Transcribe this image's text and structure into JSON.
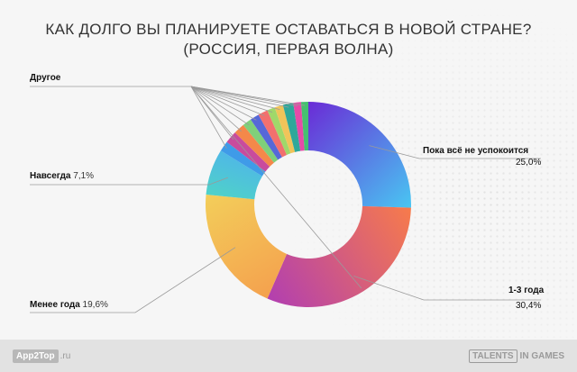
{
  "chart_data": {
    "type": "pie",
    "title_line1": "КАК ДОЛГО ВЫ ПЛАНИРУЕТЕ ОСТАВАТЬСЯ В НОВОЙ СТРАНЕ?",
    "title_line2": "(РОССИЯ, ПЕРВАЯ ВОЛНА)",
    "donut": true,
    "labels": {
      "other": "Другое",
      "forever": "Навсегда",
      "forever_pct": "7,1%",
      "calm": "Пока всё не успокоится",
      "calm_pct": "25,0%",
      "one_three": "1-3 года",
      "one_three_pct": "30,4%",
      "less_year": "Менее года",
      "less_year_pct": "19,6%"
    },
    "slices": [
      {
        "key": "calm",
        "value": 25.0,
        "color_a": "#6a2bd6",
        "color_b": "#49c6f2"
      },
      {
        "key": "one_three",
        "value": 30.4,
        "color_a": "#f77b4b",
        "color_b": "#b23fb0"
      },
      {
        "key": "less_year",
        "value": 19.6,
        "color_a": "#f4a14e",
        "color_b": "#f3ce5a"
      },
      {
        "key": "forever",
        "value": 7.1,
        "color_a": "#4fd2c8",
        "color_b": "#4fb8e6"
      },
      {
        "key": "o1",
        "value": 1.6,
        "color_a": "#3f9be8",
        "color_b": "#3f9be8"
      },
      {
        "key": "o2",
        "value": 1.9,
        "color_a": "#c94b9d",
        "color_b": "#c94b9d"
      },
      {
        "key": "o3",
        "value": 1.7,
        "color_a": "#f4884a",
        "color_b": "#f4884a"
      },
      {
        "key": "o4",
        "value": 1.4,
        "color_a": "#7fd07a",
        "color_b": "#7fd07a"
      },
      {
        "key": "o5",
        "value": 1.4,
        "color_a": "#5668d8",
        "color_b": "#5668d8"
      },
      {
        "key": "o6",
        "value": 1.5,
        "color_a": "#f2706e",
        "color_b": "#f2706e"
      },
      {
        "key": "o7",
        "value": 1.2,
        "color_a": "#a0d86a",
        "color_b": "#a0d86a"
      },
      {
        "key": "o8",
        "value": 1.3,
        "color_a": "#f0c45a",
        "color_b": "#f0c45a"
      },
      {
        "key": "o9",
        "value": 1.6,
        "color_a": "#2fa89a",
        "color_b": "#2fa89a"
      },
      {
        "key": "o10",
        "value": 1.2,
        "color_a": "#e64aa8",
        "color_b": "#e64aa8"
      },
      {
        "key": "o11",
        "value": 1.1,
        "color_a": "#45c070",
        "color_b": "#45c070"
      }
    ]
  },
  "footer": {
    "left_logo": "App2Top",
    "left_suffix": ".ru",
    "right_logo_box": "TALENTS",
    "right_logo_text": "IN GAMES"
  }
}
